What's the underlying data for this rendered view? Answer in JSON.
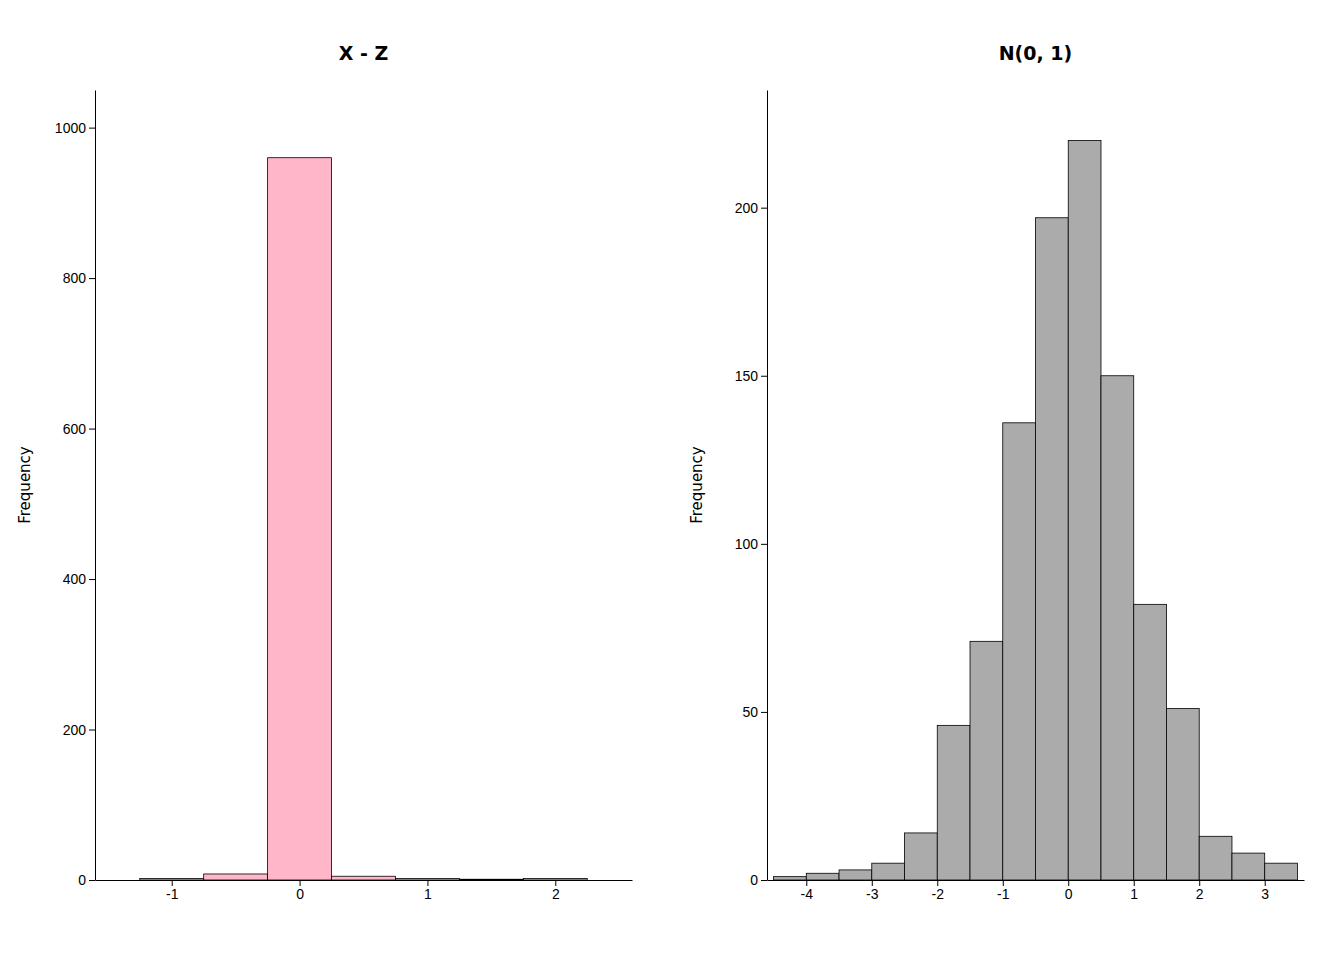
{
  "chart_data": [
    {
      "type": "histogram",
      "title": "X - Z",
      "ylabel": "Frequency",
      "color": "#FFB6C8",
      "bins": [
        -1.25,
        -0.75,
        -0.25,
        0.25,
        0.75,
        1.25,
        1.75,
        2.25
      ],
      "values": [
        2,
        8,
        960,
        5,
        2,
        1,
        2
      ],
      "xlim": [
        -1.6,
        2.6
      ],
      "ylim": [
        0,
        1050
      ],
      "xticks": [
        -1,
        0,
        1,
        2
      ],
      "yticks": [
        0,
        200,
        400,
        600,
        800,
        1000
      ],
      "grid": false
    },
    {
      "type": "histogram",
      "title": "N(0, 1)",
      "ylabel": "Frequency",
      "color": "#ABABAB",
      "bins": [
        -4.5,
        -4.0,
        -3.5,
        -3.0,
        -2.5,
        -2.0,
        -1.5,
        -1.0,
        -0.5,
        0.0,
        0.5,
        1.0,
        1.5,
        2.0,
        2.5,
        3.0,
        3.5
      ],
      "values": [
        1,
        2,
        3,
        5,
        14,
        46,
        71,
        136,
        197,
        220,
        150,
        82,
        51,
        13,
        8,
        5
      ],
      "xlim": [
        -4.6,
        3.6
      ],
      "ylim": [
        0,
        235
      ],
      "xticks": [
        -4,
        -3,
        -2,
        -1,
        0,
        1,
        2,
        3
      ],
      "yticks": [
        0,
        50,
        100,
        150,
        200
      ],
      "grid": false
    }
  ]
}
